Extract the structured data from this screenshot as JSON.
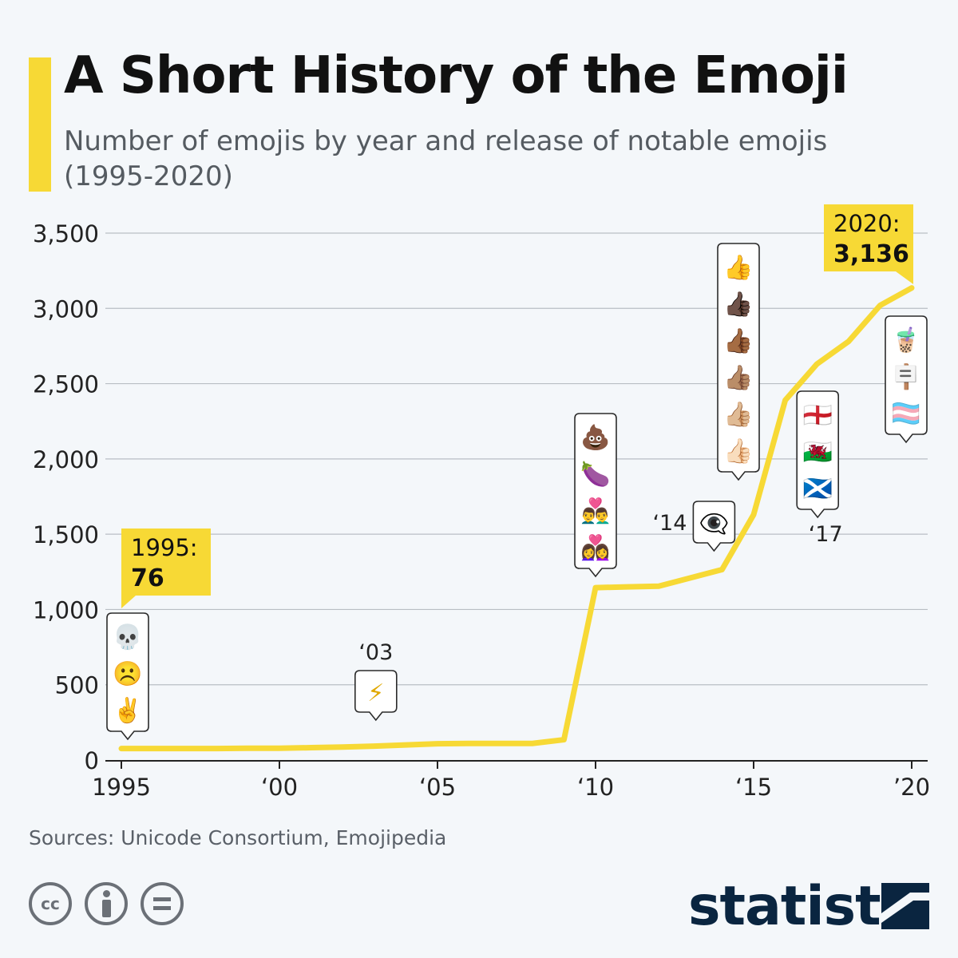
{
  "header": {
    "title": "A Short History of the Emoji",
    "subtitle": "Number of emojis by year and release of notable emojis (1995-2020)"
  },
  "chart_data": {
    "type": "line",
    "title": "A Short History of the Emoji",
    "subtitle": "Number of emojis by year and release of notable emojis (1995-2020)",
    "xlabel": "",
    "ylabel": "",
    "xlim": [
      1995,
      2020
    ],
    "ylim": [
      0,
      3500
    ],
    "grid": true,
    "line_color": "#f7d935",
    "x_ticks": [
      {
        "value": 1995,
        "label": "1995"
      },
      {
        "value": 2000,
        "label": "‘00"
      },
      {
        "value": 2005,
        "label": "‘05"
      },
      {
        "value": 2010,
        "label": "‘10"
      },
      {
        "value": 2015,
        "label": "‘15"
      },
      {
        "value": 2020,
        "label": "’20"
      }
    ],
    "y_ticks": [
      {
        "value": 0,
        "label": "0"
      },
      {
        "value": 500,
        "label": "500"
      },
      {
        "value": 1000,
        "label": "1,000"
      },
      {
        "value": 1500,
        "label": "1,500"
      },
      {
        "value": 2000,
        "label": "2,000"
      },
      {
        "value": 2500,
        "label": "2,500"
      },
      {
        "value": 3000,
        "label": "3,000"
      },
      {
        "value": 3500,
        "label": "3,500"
      }
    ],
    "series": [
      {
        "name": "Number of emojis",
        "x": [
          1995,
          1996,
          1997,
          1998,
          1999,
          2000,
          2001,
          2002,
          2003,
          2004,
          2005,
          2006,
          2007,
          2008,
          2009,
          2010,
          2011,
          2012,
          2013,
          2014,
          2015,
          2016,
          2017,
          2018,
          2019,
          2020
        ],
        "values": [
          76,
          76,
          76,
          76,
          78,
          78,
          82,
          86,
          92,
          100,
          108,
          110,
          110,
          110,
          135,
          1145,
          1150,
          1155,
          1210,
          1265,
          1630,
          2390,
          2630,
          2780,
          3020,
          3136
        ]
      }
    ],
    "annotations": [
      {
        "id": "start",
        "x": 1995,
        "value": 76,
        "label_year": "1995:",
        "label_value": "76"
      },
      {
        "id": "end",
        "x": 2020,
        "value": 3136,
        "label_year": "2020:",
        "label_value": "3,136"
      }
    ],
    "emoji_callouts": [
      {
        "x": 1995,
        "label": "",
        "emojis": [
          "💀",
          "☹️",
          "✌️"
        ]
      },
      {
        "x": 2003,
        "label": "‘03",
        "emojis": [
          "⚡"
        ]
      },
      {
        "x": 2010,
        "label": "",
        "emojis": [
          "💩",
          "🍆",
          "👨‍❤️‍👨",
          "👩‍❤️‍👩"
        ]
      },
      {
        "x": 2014,
        "label": "‘14",
        "emojis": [
          "👁️‍🗨️"
        ]
      },
      {
        "x": 2015,
        "label": "",
        "emojis": [
          "👍",
          "👍🏿",
          "👍🏾",
          "👍🏽",
          "👍🏼",
          "👍🏻"
        ]
      },
      {
        "x": 2017,
        "label": "‘17",
        "emojis": [
          "🏴󠁧󠁢󠁥󠁮󠁧󠁿",
          "🏴󠁧󠁢󠁷󠁬󠁳󠁿",
          "🏴󠁧󠁢󠁳󠁣󠁴󠁿"
        ]
      },
      {
        "x": 2020,
        "label": "",
        "emojis": [
          "🧋",
          "🪧",
          "🏳️‍⚧️"
        ]
      }
    ]
  },
  "footer": {
    "source": "Sources: Unicode Consortium, Emojipedia",
    "license_icons": [
      "cc-icon",
      "attribution-icon",
      "no-derivatives-icon"
    ],
    "license_cc_text": "cc",
    "brand": "statista"
  }
}
